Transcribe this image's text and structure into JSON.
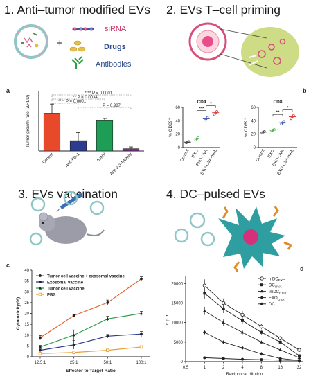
{
  "panels": {
    "p1": {
      "title": "1. Anti–tumor modified EVs",
      "labels": [
        "siRNA",
        "Drugs",
        "Antibodies"
      ],
      "colors": {
        "siRNA": "#cc3366",
        "drugs": "#2a4a8a",
        "antibodies": "#2a4a8a"
      }
    },
    "p2": {
      "title": "2. EVs T–cell priming"
    },
    "p3": {
      "title": "3. EVs vaccination"
    },
    "p4": {
      "title": "4. DC–pulsed EVs"
    }
  },
  "letters": {
    "a": "a",
    "b": "b",
    "c": "c",
    "d": "d"
  },
  "plus_sign": "+",
  "chart_data": [
    {
      "id": "a",
      "type": "bar",
      "ylabel": "Tumor growth rate (ΔRLU)",
      "categories": [
        "Control",
        "Anti-PD-1",
        "fMNV",
        "Anti-PD-1/fMNV"
      ],
      "values": [
        1.65,
        0.45,
        1.35,
        0.1
      ],
      "errors": [
        0.4,
        0.35,
        0.07,
        0.08
      ],
      "colors": [
        "#e8492b",
        "#2b3b8f",
        "#1d9d55",
        "#7b2f8e"
      ],
      "ylim": [
        0,
        2.6
      ],
      "annotations": [
        "**** P = 0.0001",
        "** P = 0.0034",
        "**** P = 0.0001",
        "P = 0.987"
      ]
    },
    {
      "id": "cd4",
      "type": "scatter",
      "title": "CD4",
      "ylabel": "% CD69⁺",
      "categories": [
        "Control",
        "EXO",
        "EXO-OVA",
        "EXO-OVA-mAb"
      ],
      "yticks": [
        0,
        20,
        40,
        60
      ],
      "ylim": [
        0,
        60
      ],
      "means": [
        8,
        13,
        43,
        52
      ],
      "points": [
        [
          7,
          8,
          9
        ],
        [
          11,
          13,
          15
        ],
        [
          41,
          43,
          45
        ],
        [
          49,
          52,
          54
        ]
      ],
      "colors": [
        "#444444",
        "#48b04a",
        "#3c58b8",
        "#d93a3a"
      ],
      "sig": [
        "***",
        "*"
      ]
    },
    {
      "id": "cd8",
      "type": "scatter",
      "title": "CD8",
      "ylabel": "% CD69⁺",
      "categories": [
        "Control",
        "EXO",
        "EXO-OVA",
        "EXO-OVA-mAb"
      ],
      "yticks": [
        0,
        20,
        40,
        60
      ],
      "ylim": [
        0,
        60
      ],
      "means": [
        23,
        26,
        37,
        46
      ],
      "points": [
        [
          22,
          23,
          24
        ],
        [
          25,
          26,
          27
        ],
        [
          35,
          37,
          39
        ],
        [
          43,
          46,
          48
        ]
      ],
      "colors": [
        "#444444",
        "#48b04a",
        "#3c58b8",
        "#d93a3a"
      ],
      "sig": [
        "**",
        "*"
      ]
    },
    {
      "id": "c",
      "type": "line",
      "xlabel": "Effector to Target Ratio",
      "ylabel": "Cytotoxicity(%)",
      "categories": [
        "12.5:1",
        "25:1",
        "50:1",
        "100:1"
      ],
      "yticks": [
        0,
        5,
        10,
        15,
        20,
        25,
        30,
        35,
        40
      ],
      "ylim": [
        0,
        40
      ],
      "series": [
        {
          "name": "Tumor cell vaccine + exosomal vaccine",
          "color": "#e8602c",
          "values": [
            8.8,
            19,
            25,
            36
          ],
          "err": [
            1,
            0.5,
            1.2,
            1
          ]
        },
        {
          "name": "Exosomal vaccine",
          "color": "#2b3b8f",
          "values": [
            3,
            5.5,
            9.5,
            10.5
          ],
          "err": [
            0.6,
            2,
            0.8,
            1.2
          ]
        },
        {
          "name": "Tumor cell vaccine",
          "color": "#2e9e4b",
          "values": [
            4.5,
            10,
            17.5,
            20
          ],
          "err": [
            0.8,
            2.4,
            1.2,
            1
          ]
        },
        {
          "name": "PBS",
          "color": "#e8a030",
          "values": [
            1.5,
            2,
            3,
            4.5
          ],
          "err": [
            0.3,
            0.3,
            0.3,
            0.3
          ]
        }
      ]
    },
    {
      "id": "d",
      "type": "line",
      "xlabel": "Reciprocal dilution",
      "ylabel": "c.p.m.",
      "xticks": [
        "0.5",
        "1",
        "2",
        "4",
        "8",
        "16",
        "32"
      ],
      "x": [
        1,
        2,
        4,
        8,
        16,
        32
      ],
      "yticks": [
        0,
        5000,
        10000,
        15000,
        20000
      ],
      "ytick_labels": [
        "0",
        "5000",
        "10000",
        "15000",
        "20000"
      ],
      "ylim": [
        0,
        22000
      ],
      "series": [
        {
          "name": "mDC<sub>EXO</sub>",
          "marker": "open-circle",
          "values": [
            19500,
            15000,
            12000,
            9000,
            6000,
            3000
          ]
        },
        {
          "name": "DC<sub>OVA</sub>",
          "marker": "square",
          "values": [
            17500,
            13500,
            10500,
            7500,
            5000,
            1500
          ]
        },
        {
          "name": "imDC<sub>EXO</sub>",
          "marker": "triangle",
          "values": [
            13000,
            10000,
            7500,
            5000,
            3000,
            1000
          ]
        },
        {
          "name": "EXO<sub>OVA</sub>",
          "marker": "diamond",
          "values": [
            7500,
            5000,
            3500,
            2000,
            800,
            300
          ]
        },
        {
          "name": "DC",
          "marker": "circle",
          "values": [
            1000,
            800,
            600,
            500,
            400,
            300
          ]
        }
      ]
    }
  ]
}
